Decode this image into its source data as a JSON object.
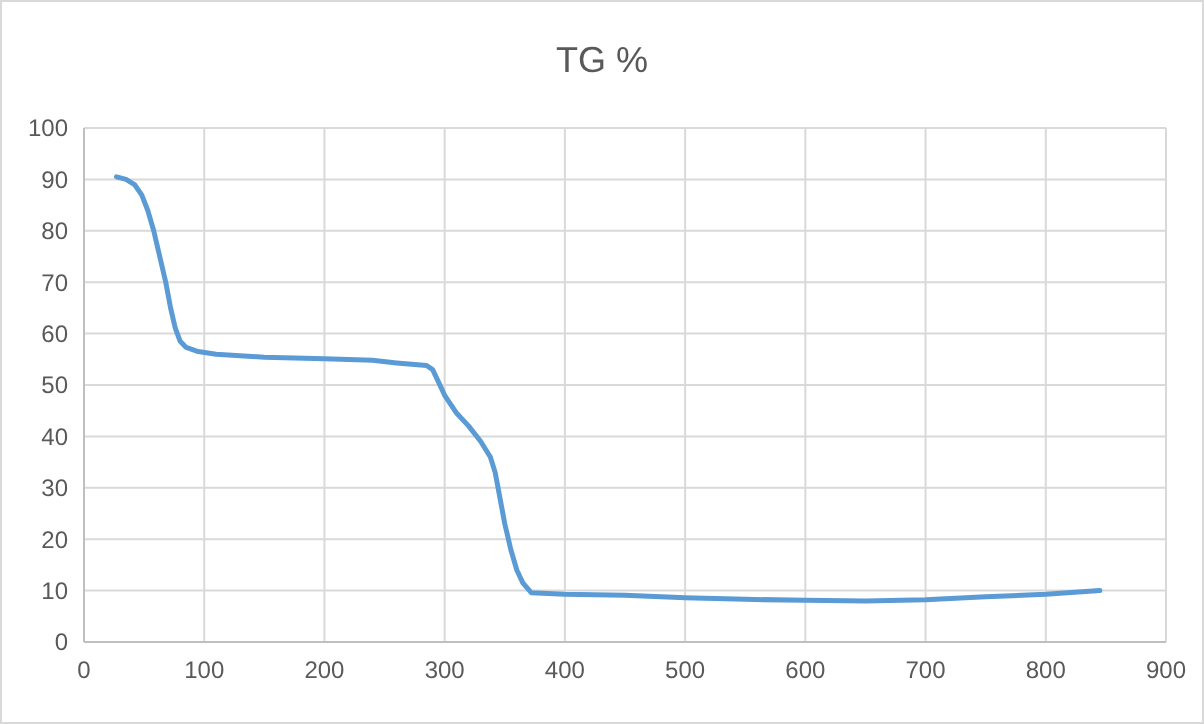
{
  "chart_data": {
    "type": "line",
    "title": "TG %",
    "series": [
      {
        "color": "#5b9bd5",
        "x": [
          27,
          35,
          42,
          48,
          53,
          58,
          63,
          68,
          72,
          76,
          80,
          85,
          95,
          110,
          150,
          200,
          240,
          260,
          285,
          290,
          295,
          300,
          310,
          320,
          330,
          338,
          342,
          346,
          350,
          355,
          360,
          365,
          372,
          400,
          450,
          500,
          550,
          600,
          650,
          700,
          750,
          800,
          845
        ],
        "values": [
          90.5,
          90,
          89,
          87,
          84,
          80,
          75,
          70,
          65,
          61,
          58.5,
          57.3,
          56.5,
          56,
          55.4,
          55.1,
          54.8,
          54.3,
          53.8,
          53,
          50.5,
          48,
          44.5,
          42,
          39,
          36,
          33,
          28,
          23,
          18,
          14,
          11.5,
          9.6,
          9.3,
          9.1,
          8.6,
          8.3,
          8.1,
          8,
          8.2,
          8.8,
          9.3,
          10
        ]
      }
    ],
    "xlim": [
      0,
      900
    ],
    "xticks": [
      0,
      100,
      200,
      300,
      400,
      500,
      600,
      700,
      800,
      900
    ],
    "ylim": [
      0,
      100
    ],
    "yticks": [
      0,
      10,
      20,
      30,
      40,
      50,
      60,
      70,
      80,
      90,
      100
    ],
    "grid": true,
    "marker": "none",
    "line_style": "solid"
  }
}
